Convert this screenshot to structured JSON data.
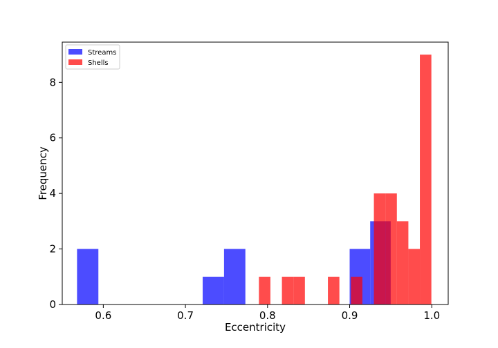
{
  "chart_data": {
    "type": "bar",
    "title": "",
    "xlabel": "Eccentricity",
    "ylabel": "Frequency",
    "xlim": [
      0.55,
      1.02
    ],
    "ylim": [
      0,
      9.45
    ],
    "xticks": [
      0.6,
      0.7,
      0.8,
      0.9,
      1.0
    ],
    "xtick_labels": [
      "0.6",
      "0.7",
      "0.8",
      "0.9",
      "1.0"
    ],
    "yticks": [
      0,
      2,
      4,
      6,
      8
    ],
    "ytick_labels": [
      "0",
      "2",
      "4",
      "6",
      "8"
    ],
    "grid": false,
    "legend": {
      "placement": "top-left"
    },
    "series": [
      {
        "name": "Streams",
        "color": "#0000ff",
        "opacity": 0.7,
        "bins": [
          {
            "x0": 0.568,
            "x1": 0.594,
            "count": 2
          },
          {
            "x0": 0.721,
            "x1": 0.747,
            "count": 1
          },
          {
            "x0": 0.747,
            "x1": 0.773,
            "count": 2
          },
          {
            "x0": 0.9,
            "x1": 0.925,
            "count": 2
          },
          {
            "x0": 0.925,
            "x1": 0.95,
            "count": 3
          }
        ]
      },
      {
        "name": "Shells",
        "color": "#ff0000",
        "opacity": 0.7,
        "bins": [
          {
            "x0": 0.7895,
            "x1": 0.8035,
            "count": 1
          },
          {
            "x0": 0.8175,
            "x1": 0.8315,
            "count": 1
          },
          {
            "x0": 0.8315,
            "x1": 0.8455,
            "count": 1
          },
          {
            "x0": 0.8735,
            "x1": 0.8875,
            "count": 1
          },
          {
            "x0": 0.9015,
            "x1": 0.9155,
            "count": 1
          },
          {
            "x0": 0.9295,
            "x1": 0.9435,
            "count": 4
          },
          {
            "x0": 0.9435,
            "x1": 0.9575,
            "count": 4
          },
          {
            "x0": 0.9575,
            "x1": 0.9715,
            "count": 3
          },
          {
            "x0": 0.9715,
            "x1": 0.9855,
            "count": 2
          },
          {
            "x0": 0.9855,
            "x1": 0.9995,
            "count": 9
          }
        ]
      }
    ]
  }
}
